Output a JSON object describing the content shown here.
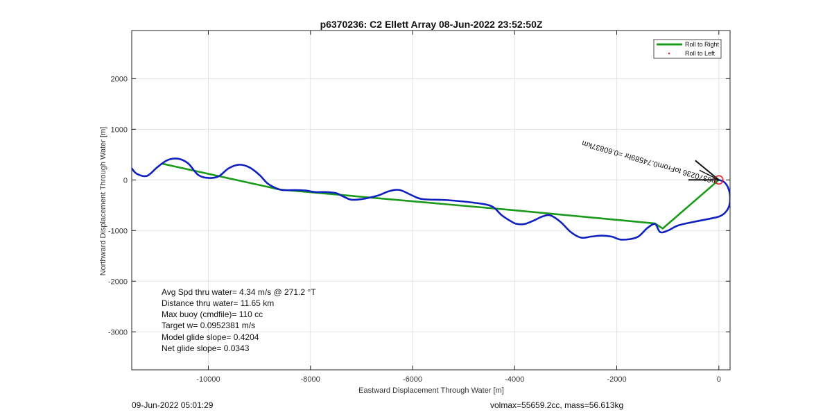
{
  "chart_data": {
    "type": "line",
    "title": "p6370236: C2 Ellett Array 08-Jun-2022 23:52:50Z",
    "xlabel": "Eastward Displacement Through Water [m]",
    "ylabel": "Northward Displacement Through Water [m]",
    "xlim": [
      -11500,
      220
    ],
    "ylim": [
      -3750,
      2950
    ],
    "xticks": [
      -10000,
      -8000,
      -6000,
      -4000,
      -2000,
      0
    ],
    "yticks": [
      -3000,
      -2000,
      -1000,
      0,
      1000,
      2000
    ],
    "xtick_labels": [
      "-10000",
      "-8000",
      "-6000",
      "-4000",
      "-2000",
      "0"
    ],
    "ytick_labels": [
      "-3000",
      "-2000",
      "-1000",
      "0",
      "1000",
      "2000"
    ],
    "grid": true,
    "legend_position": "top-right",
    "series": [
      {
        "name": "Roll to Right",
        "color": "#1a9a1a",
        "x": [
          0,
          -1100,
          -1250,
          -4000,
          -8600,
          -10900
        ],
        "y": [
          0,
          -960,
          -860,
          -600,
          -190,
          320
        ]
      },
      {
        "name": "Roll to Left",
        "color": "#e0202a",
        "x": [],
        "y": []
      },
      {
        "color": "#1020c0",
        "x": [
          0,
          100,
          180,
          220,
          200,
          120,
          10,
          -150,
          -500,
          -800,
          -1000,
          -1150,
          -1250,
          -1400,
          -1600,
          -1900,
          -2100,
          -2300,
          -2500,
          -2700,
          -2900,
          -3100,
          -3300,
          -3450,
          -3600,
          -3800,
          -3950,
          -4050,
          -4250,
          -4450,
          -4800,
          -5300,
          -5800,
          -6000,
          -6250,
          -6450,
          -6650,
          -6800,
          -7000,
          -7200,
          -7350,
          -7500,
          -7700,
          -7900,
          -8100,
          -8300,
          -8550,
          -8700,
          -8850,
          -9000,
          -9200,
          -9400,
          -9600,
          -9800,
          -10000,
          -10200,
          -10400,
          -10600,
          -10800,
          -11000,
          -11200,
          -11400,
          -11500
        ],
        "y": [
          0,
          -40,
          -150,
          -330,
          -520,
          -650,
          -720,
          -760,
          -830,
          -900,
          -1000,
          -1030,
          -870,
          -950,
          -1130,
          -1180,
          -1120,
          -1100,
          -1120,
          -1140,
          -1030,
          -830,
          -700,
          -720,
          -790,
          -870,
          -870,
          -830,
          -700,
          -520,
          -450,
          -400,
          -380,
          -310,
          -200,
          -220,
          -300,
          -340,
          -380,
          -390,
          -330,
          -260,
          -240,
          -240,
          -210,
          -200,
          -200,
          -150,
          -60,
          100,
          250,
          300,
          230,
          70,
          40,
          100,
          330,
          420,
          390,
          250,
          80,
          120,
          230
        ]
      }
    ],
    "annotations": {
      "rotated_label": "p6370236 toFrom0.74589hr =0.60837km",
      "stats": [
        "Avg Spd thru water=  4.34 m/s @ 271.2 °T",
        "Distance thru water= 11.65 km",
        "Max buoy (cmdfile)= 110 cc",
        "Target w= 0.0952381 m/s",
        "Model glide slope= 0.4204",
        "Net glide slope= 0.0343"
      ],
      "footer_left": "09-Jun-2022 05:01:29",
      "footer_right": "volmax=55659.2cc, mass=56.613kg"
    }
  }
}
